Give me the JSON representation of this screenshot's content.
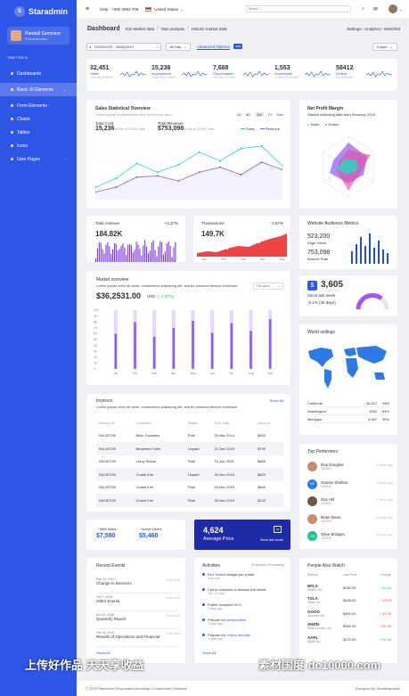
{
  "brand": {
    "name": "Staradmin",
    "logo_letter": "S"
  },
  "user": {
    "name": "Randall Summers",
    "role": "Premium user"
  },
  "sidebar": {
    "menu_title": "Main Menu",
    "items": [
      {
        "label": "Dashboards"
      },
      {
        "label": "Basic UI Elements"
      },
      {
        "label": "Form Elements"
      },
      {
        "label": "Charts"
      },
      {
        "label": "Tables"
      },
      {
        "label": "Icons"
      },
      {
        "label": "User Pages"
      }
    ]
  },
  "topbar": {
    "help": "Help : +050 2992 709",
    "country": "United States",
    "search_placeholder": "Search..."
  },
  "breadcrumb": {
    "title": "Dashboard",
    "items": [
      "ICE Market data",
      "Own analysis",
      "Historic market data"
    ],
    "right": [
      "Settings",
      "Analytics",
      "Watchlist"
    ]
  },
  "toolbar": {
    "date_range": "03/02/2019 - 20/08/2019",
    "period": "All Day",
    "advanced": "Advanced Options",
    "new_badge": "new",
    "export": "Export"
  },
  "stats": [
    {
      "value": "32,451",
      "label": "Visits",
      "sub": "+14.00(+0.50%)"
    },
    {
      "value": "15,236",
      "label": "Impressions",
      "sub": "+138.97(+0.54%)"
    },
    {
      "value": "7,688",
      "label": "Conversation",
      "sub": "+57.62(+0.76%)"
    },
    {
      "value": "1,553",
      "label": "Downloads",
      "sub": "+138.97(+0.54%)"
    },
    {
      "value": "58412",
      "label": "Orders",
      "sub": "+1.2(+0.4%)"
    }
  ],
  "sales_overview": {
    "title": "Sales Statistical Overview",
    "subtitle": "Lorem ipsum is placeholder text commonly used",
    "ranges": [
      "1D",
      "5D",
      "1M",
      "1Y",
      "Max"
    ],
    "total_cost_label": "Total Cost",
    "total_cost": "15,236",
    "total_cost_sub": "89.5% of 20,000 Total",
    "total_rev_label": "Total Revenue",
    "total_rev": "$753,098",
    "total_rev_sub": "10.5% of 20,000 Total",
    "legend": [
      "Sales",
      "Revenue"
    ]
  },
  "chart_data": [
    {
      "type": "line",
      "title": "Sales Statistical Overview",
      "x": [
        "1",
        "2",
        "3",
        "4",
        "5",
        "6",
        "7",
        "8",
        "9",
        "10"
      ],
      "series": [
        {
          "name": "Sales",
          "values": [
            20,
            34,
            58,
            44,
            56,
            76,
            62,
            82,
            86,
            54
          ]
        },
        {
          "name": "Revenue",
          "values": [
            12,
            20,
            36,
            38,
            30,
            44,
            52,
            40,
            60,
            48
          ]
        }
      ],
      "legend": "top-right"
    },
    {
      "type": "bar",
      "title": "Market overview",
      "categories": [
        "Jan",
        "Feb",
        "Mar",
        "Apr",
        "May",
        "Jun",
        "Jul",
        "Aug",
        "Sep"
      ],
      "ylim": [
        0,
        100
      ],
      "y_ticks": [
        "0",
        "10",
        "20",
        "30",
        "40",
        "50",
        "60",
        "70",
        "80",
        "90",
        "100"
      ],
      "series": [
        {
          "values": [
            100,
            100,
            100,
            100,
            100,
            100,
            100,
            100,
            100
          ]
        },
        {
          "values": [
            60,
            80,
            55,
            70,
            82,
            62,
            78,
            65,
            85
          ]
        }
      ]
    }
  ],
  "net_profit": {
    "title": "Net Profit Margin",
    "subtitle": "Started collecting data from February 2019",
    "legend": [
      "Sales",
      "Orders"
    ]
  },
  "total_revenue": {
    "title": "Total revenue",
    "change": "+1.37%",
    "value": "184.82K"
  },
  "transactions": {
    "title": "Transactions",
    "change": "- 2.87%",
    "value": "149.7K",
    "x_labels": [
      "Jan",
      "Feb",
      "Mar",
      "Apr",
      "May"
    ]
  },
  "audience": {
    "title": "Website Audience Metrics",
    "page_views": "523,200",
    "page_views_label": "Page Views",
    "bounce": "753,098",
    "bounce_label": "Bounce Rate"
  },
  "market": {
    "title": "Market overview",
    "subtitle": "Lorem ipsum dolor sit amet, consectetur adipiscing elit, sed do eiusmod tempor incididunt",
    "value": "$36,2531.00",
    "currency": "USD",
    "change": "(+1.37%)",
    "dropdown": "This week"
  },
  "since_card": {
    "value": "3,605",
    "since": "Since last week",
    "change": "-0.1% (30 days)"
  },
  "world": {
    "title": "World sellings",
    "rows": [
      {
        "name": "California",
        "value": "26,437",
        "pct": "26%"
      },
      {
        "name": "Washington",
        "value": "3252",
        "pct": "64%"
      },
      {
        "name": "Michigan",
        "value": "4,987",
        "pct": "30%"
      }
    ]
  },
  "invoices": {
    "title": "Invoices",
    "show_all": "Show All",
    "subtitle": "Lorem ipsum dolor sit amet, consectetur adipiscing elit, sed do eiusmod tempor incididunt",
    "columns": [
      "Invoice ID",
      "Customer",
      "Status",
      "Due Date",
      "Amount"
    ],
    "rows": [
      [
        "INV-87239",
        "Belle Gonzales",
        "Paid",
        "29 Mar 2019",
        "$800"
      ],
      [
        "INV-87239",
        "Benjamin Fuller",
        "Unpaid",
        "21 Dec 2019",
        "$790"
      ],
      [
        "INV-87239",
        "Leroy Parker",
        "Paid",
        "12 Jun 2019",
        "$860"
      ],
      [
        "INV-87239",
        "Chase Kim",
        "Unpaid",
        "26 Nov 2019",
        "$820"
      ],
      [
        "INV-87239",
        "Chase Kim",
        "Paid",
        "26 Nov 2019",
        "$840"
      ],
      [
        "INV-87239",
        "Chase Kim",
        "Paid",
        "26 Nov 2019",
        "$240"
      ]
    ]
  },
  "performers": {
    "title": "Top Performers",
    "items": [
      {
        "name": "Ray Douglas",
        "sub": "162543",
        "time": "5 Hours ago",
        "avatar": "photo"
      },
      {
        "name": "Gussie Shelton",
        "sub": "162543",
        "time": "3 Hours ago",
        "avatar": "GS",
        "color": "#2d7ae6"
      },
      {
        "name": "Ora Hill",
        "sub": "162543",
        "time": "4 Hours ago",
        "avatar": "photo2"
      },
      {
        "name": "Brian Dean",
        "sub": "162543",
        "time": "5 Hours ago",
        "avatar": "photo3"
      },
      {
        "name": "Olive Bridges",
        "sub": "162543",
        "time": "4 Hours ago",
        "avatar": "OB",
        "color": "#20c090"
      }
    ]
  },
  "small_stats": {
    "sales_label": "Total Sales",
    "sales": "$7,590",
    "users_label": "Active Users",
    "users": "$5,460"
  },
  "price_card": {
    "value": "4,624",
    "label": "Average Price",
    "since": "Since last month"
  },
  "recent_events": {
    "title": "Recent Events",
    "show_all": "Show All",
    "edit": "Edit event",
    "items": [
      {
        "date": "Mar 14, 2019",
        "title": "Change in Directors"
      },
      {
        "date": "Oct 7, 2018",
        "title": "Other Events"
      },
      {
        "date": "Oct 15, 2019",
        "title": "Quarterly Report"
      },
      {
        "date": "Oct 15, 2019",
        "title": "Results of Operations and Financial"
      }
    ]
  },
  "activities": {
    "title": "Activities",
    "count": "20 finished, 5 remaining",
    "show_all": "Show All",
    "items": [
      {
        "pre": "",
        "link": "Ben Tossell",
        "post": " assign you a task",
        "time": "Just now"
      },
      {
        "pre": "Call to customer & discuss the detail.",
        "link": "",
        "post": "",
        "time": "Thu, 10 Mar"
      },
      {
        "pre": "Profile complete ",
        "link": "60%",
        "post": "",
        "time": "3 days ago"
      },
      {
        "pre": "Prepare for ",
        "link": "presentation",
        "post": "",
        "time": "4 days ago"
      },
      {
        "pre": "Prepare for ",
        "link": "Online tutorials",
        "post": "",
        "time": "4 days ago"
      }
    ]
  },
  "people": {
    "title": "People Also Watch",
    "columns": [
      "Symbol",
      "Last Price",
      "Change"
    ],
    "rows": [
      {
        "sym": "NFLX",
        "name": "Netflix, Inc.",
        "price": "$250.00",
        "change": "+12.64",
        "up": true
      },
      {
        "sym": "TSLA",
        "name": "Tesla, Inc.",
        "price": "$458.00",
        "change": "-14.93",
        "up": false
      },
      {
        "sym": "GOOG",
        "name": "Alphabet Inc.",
        "price": "$450.00",
        "change": "+12.05",
        "up": false
      },
      {
        "sym": "AMZN",
        "name": "Amazon.com, Inc.",
        "price": "$350.00",
        "change": "+20.95",
        "up": false
      },
      {
        "sym": "AAPL",
        "name": "Apple Inc.",
        "price": "$170.00",
        "change": "+22.36",
        "up": true
      }
    ]
  },
  "footer": {
    "left": "© 2019 Staradmin Responsive Bootstrap 4 Dashboard Template",
    "right": "Designed by: Bootstrapdash"
  },
  "watermarks": [
    "上传好作品  天天享收益",
    "素材国度  dc10000.com"
  ]
}
